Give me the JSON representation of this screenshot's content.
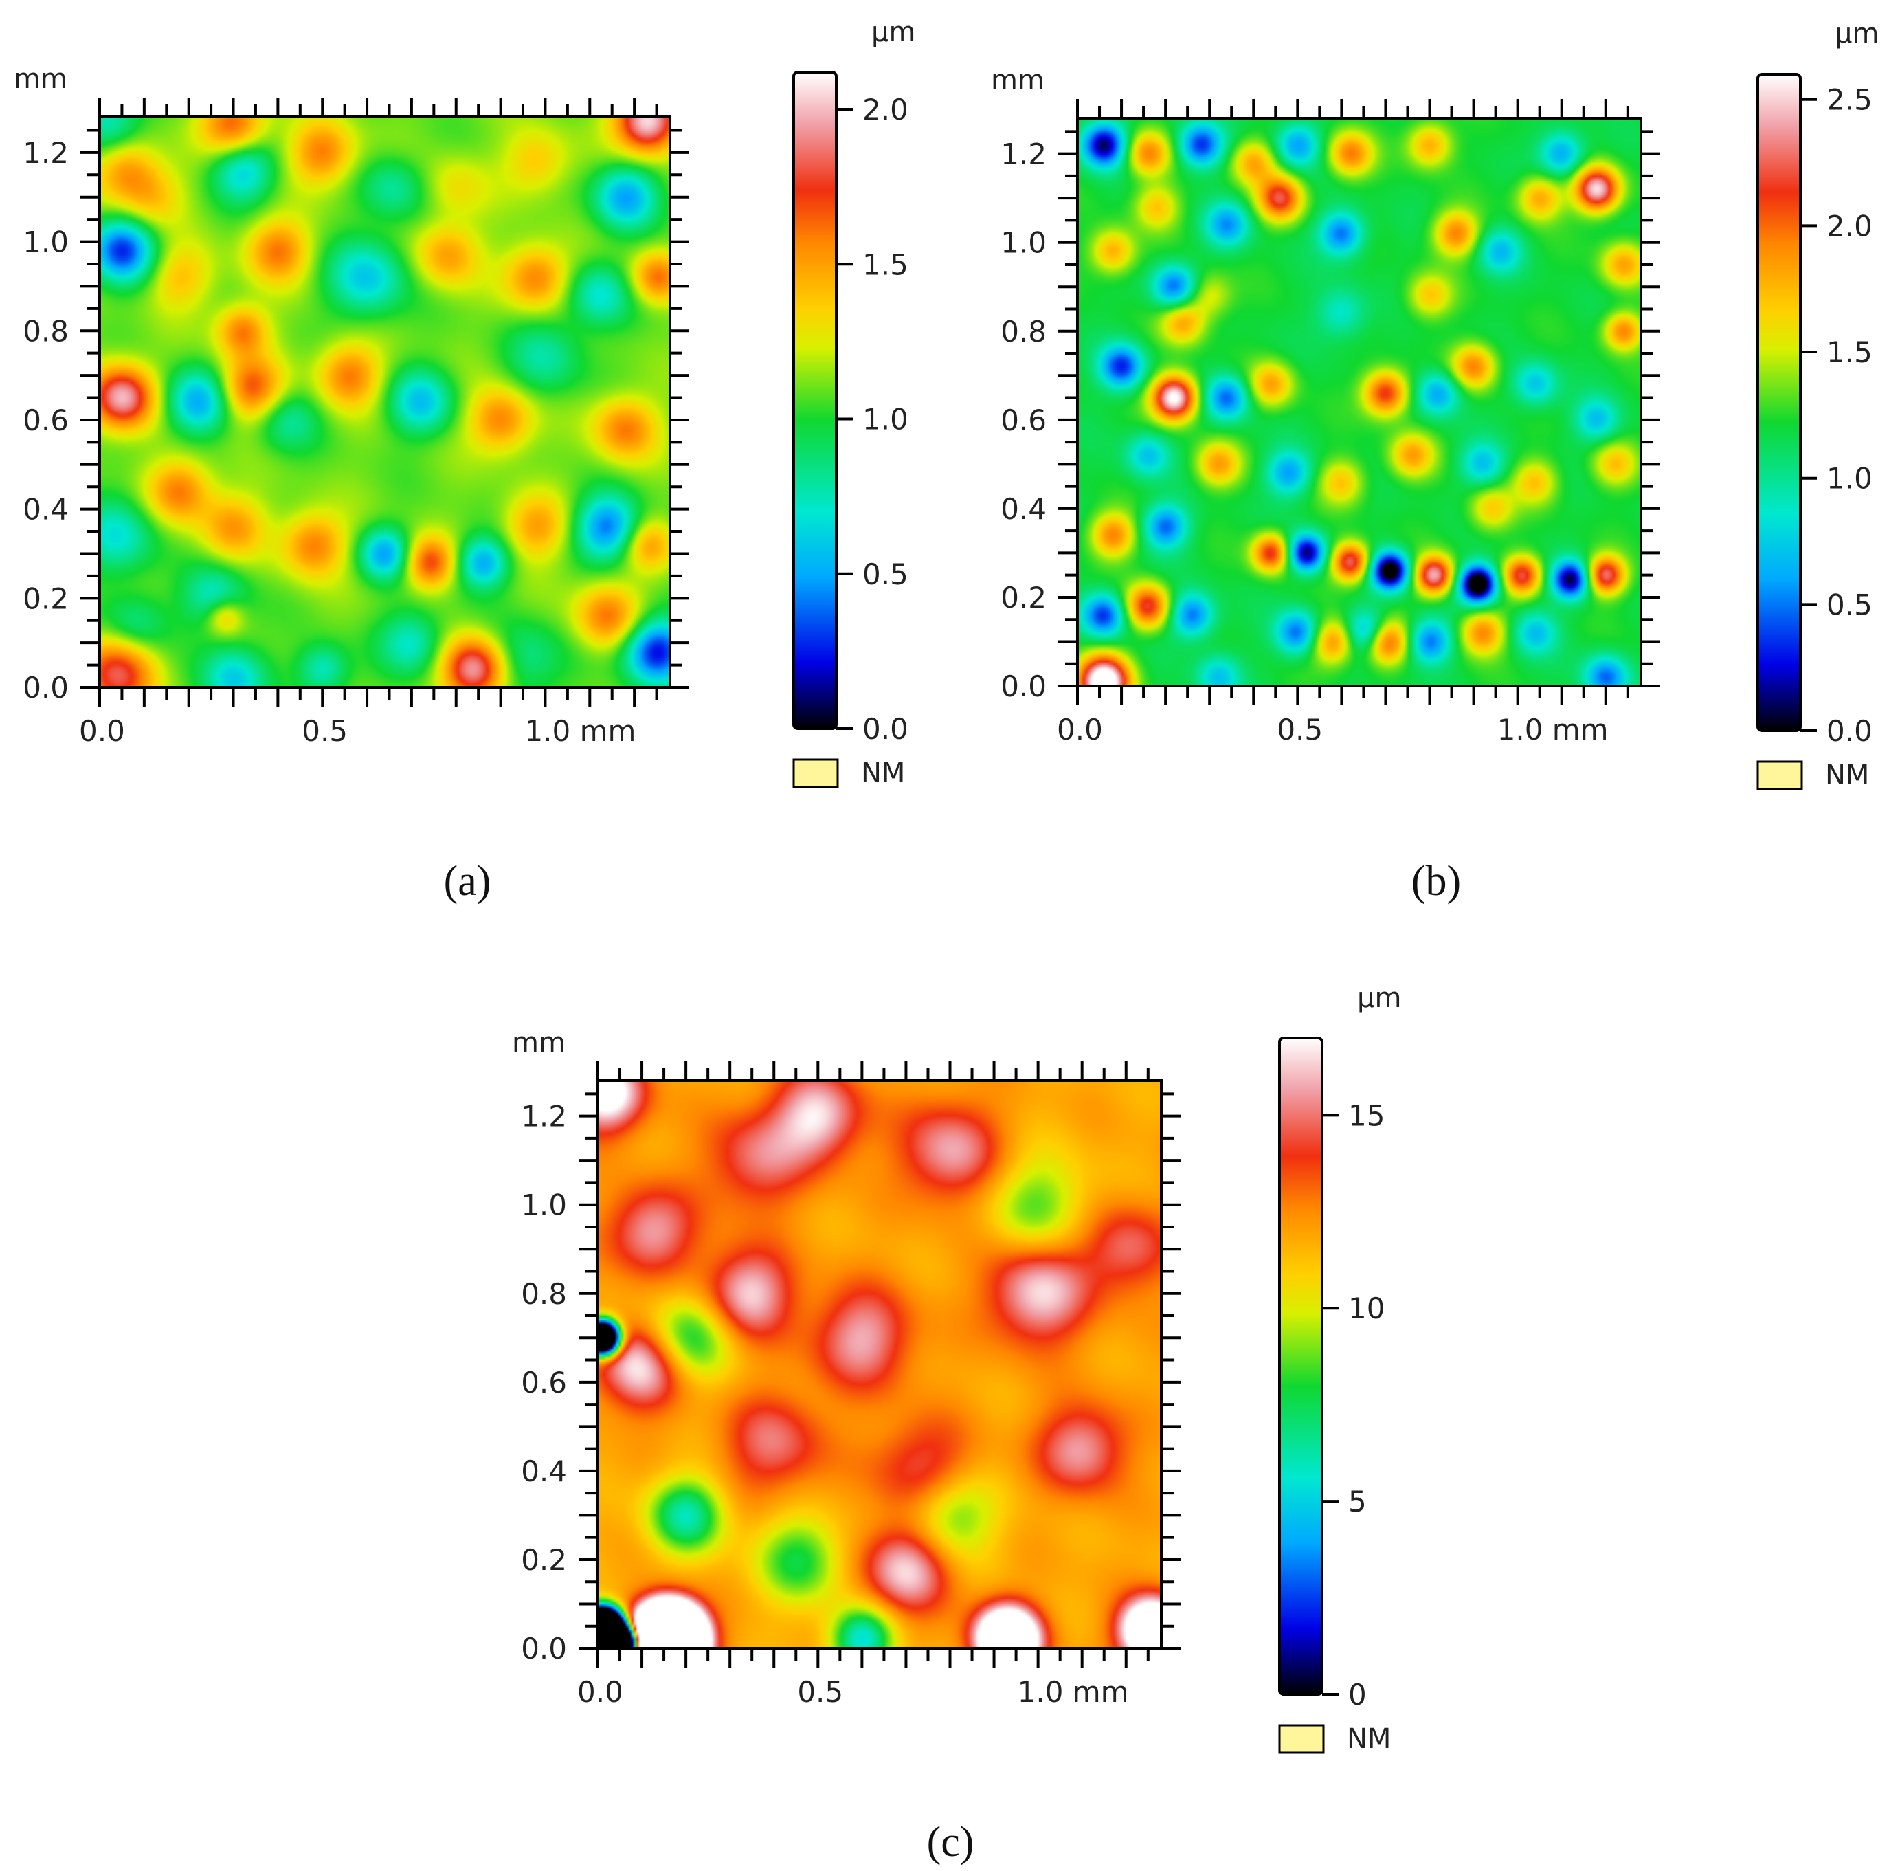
{
  "chart_data": [
    {
      "type": "heatmap",
      "panel_label": "(a)",
      "x_unit": "mm",
      "y_unit": "mm",
      "x_ticks": [
        "0.0",
        "0.5",
        "1.0 mm"
      ],
      "x_tick_values": [
        0.0,
        0.5,
        1.0
      ],
      "y_ticks": [
        "0.0",
        "0.2",
        "0.4",
        "0.6",
        "0.8",
        "1.0",
        "1.2"
      ],
      "y_tick_values": [
        0.0,
        0.2,
        0.4,
        0.6,
        0.8,
        1.0,
        1.2
      ],
      "xlim": [
        0,
        1.28
      ],
      "ylim": [
        0,
        1.28
      ],
      "colorbar": {
        "unit": "µm",
        "ticks": [
          "0.0",
          "0.5",
          "1.0",
          "1.5",
          "2.0"
        ],
        "tick_values": [
          0.0,
          0.5,
          1.0,
          1.5,
          2.0
        ],
        "range": [
          0.0,
          2.12
        ]
      },
      "nm_legend": "NM",
      "base_value": 1.1,
      "features": [
        [
          0.02,
          1.27,
          -0.4,
          0.05
        ],
        [
          0.06,
          1.16,
          0.4,
          0.05
        ],
        [
          0.12,
          1.1,
          0.3,
          0.05
        ],
        [
          0.05,
          0.98,
          -0.8,
          0.05
        ],
        [
          0.18,
          0.92,
          0.3,
          0.05
        ],
        [
          0.32,
          1.16,
          -0.5,
          0.05
        ],
        [
          0.4,
          0.98,
          0.5,
          0.05
        ],
        [
          0.5,
          1.2,
          0.5,
          0.05
        ],
        [
          0.3,
          1.26,
          0.6,
          0.05
        ],
        [
          0.66,
          1.12,
          -0.3,
          0.05
        ],
        [
          0.8,
          1.12,
          0.2,
          0.05
        ],
        [
          0.6,
          0.92,
          -0.5,
          0.06
        ],
        [
          0.78,
          0.97,
          0.4,
          0.05
        ],
        [
          0.98,
          1.18,
          0.3,
          0.05
        ],
        [
          1.18,
          1.1,
          -0.6,
          0.05
        ],
        [
          1.23,
          1.27,
          1.0,
          0.05
        ],
        [
          1.25,
          0.92,
          0.5,
          0.04
        ],
        [
          0.98,
          0.92,
          0.5,
          0.05
        ],
        [
          1.12,
          0.88,
          -0.4,
          0.05
        ],
        [
          0.32,
          0.8,
          0.5,
          0.04
        ],
        [
          0.05,
          0.65,
          0.9,
          0.05
        ],
        [
          0.22,
          0.64,
          -0.6,
          0.05
        ],
        [
          0.34,
          0.67,
          0.6,
          0.05
        ],
        [
          0.42,
          0.6,
          -0.3,
          0.05
        ],
        [
          0.56,
          0.7,
          0.5,
          0.05
        ],
        [
          0.72,
          0.64,
          -0.5,
          0.05
        ],
        [
          0.9,
          0.6,
          0.5,
          0.05
        ],
        [
          1.0,
          0.74,
          -0.3,
          0.06
        ],
        [
          1.18,
          0.58,
          0.5,
          0.05
        ],
        [
          0.04,
          0.34,
          -0.4,
          0.06
        ],
        [
          0.18,
          0.44,
          0.5,
          0.05
        ],
        [
          0.3,
          0.36,
          0.4,
          0.05
        ],
        [
          0.26,
          0.2,
          -0.4,
          0.05
        ],
        [
          0.28,
          0.16,
          0.4,
          0.03
        ],
        [
          0.48,
          0.32,
          0.5,
          0.05
        ],
        [
          0.64,
          0.3,
          -0.6,
          0.04
        ],
        [
          0.74,
          0.28,
          0.6,
          0.04
        ],
        [
          0.86,
          0.28,
          -0.6,
          0.04
        ],
        [
          0.98,
          0.36,
          0.4,
          0.05
        ],
        [
          1.14,
          0.36,
          -0.7,
          0.05
        ],
        [
          1.23,
          0.32,
          0.4,
          0.04
        ],
        [
          1.14,
          0.16,
          0.5,
          0.05
        ],
        [
          1.25,
          0.08,
          -0.9,
          0.05
        ],
        [
          0.84,
          0.04,
          0.9,
          0.05
        ],
        [
          0.7,
          0.1,
          -0.4,
          0.05
        ],
        [
          0.04,
          0.03,
          0.7,
          0.06
        ],
        [
          0.3,
          0.02,
          -0.5,
          0.05
        ],
        [
          0.5,
          0.04,
          -0.4,
          0.04
        ],
        [
          0.95,
          0.06,
          -0.3,
          0.06
        ],
        [
          0.08,
          0.14,
          -0.3,
          0.05
        ]
      ]
    },
    {
      "type": "heatmap",
      "panel_label": "(b)",
      "x_unit": "mm",
      "y_unit": "mm",
      "x_ticks": [
        "0.0",
        "0.5",
        "1.0 mm"
      ],
      "x_tick_values": [
        0.0,
        0.5,
        1.0
      ],
      "y_ticks": [
        "0.0",
        "0.2",
        "0.4",
        "0.6",
        "0.8",
        "1.0",
        "1.2"
      ],
      "y_tick_values": [
        0.0,
        0.2,
        0.4,
        0.6,
        0.8,
        1.0,
        1.2
      ],
      "xlim": [
        0,
        1.28
      ],
      "ylim": [
        0,
        1.28
      ],
      "colorbar": {
        "unit": "µm",
        "ticks": [
          "0.0",
          "0.5",
          "1.0",
          "1.5",
          "2.0",
          "2.5"
        ],
        "tick_values": [
          0.0,
          0.5,
          1.0,
          1.5,
          2.0,
          2.5
        ],
        "range": [
          0.0,
          2.6
        ]
      },
      "nm_legend": "NM",
      "base_value": 1.2,
      "features": [
        [
          0.06,
          1.22,
          -0.9,
          0.035
        ],
        [
          0.16,
          1.2,
          0.6,
          0.035
        ],
        [
          0.28,
          1.22,
          -0.7,
          0.035
        ],
        [
          0.4,
          1.18,
          0.5,
          0.035
        ],
        [
          0.5,
          1.22,
          -0.5,
          0.035
        ],
        [
          0.62,
          1.2,
          0.6,
          0.035
        ],
        [
          0.8,
          1.22,
          0.5,
          0.035
        ],
        [
          1.1,
          1.2,
          -0.5,
          0.035
        ],
        [
          1.18,
          1.12,
          1.1,
          0.035
        ],
        [
          1.05,
          1.1,
          0.5,
          0.035
        ],
        [
          0.46,
          1.1,
          0.8,
          0.035
        ],
        [
          0.6,
          1.02,
          -0.6,
          0.035
        ],
        [
          0.34,
          1.04,
          -0.5,
          0.035
        ],
        [
          0.18,
          1.08,
          0.4,
          0.035
        ],
        [
          0.08,
          0.98,
          0.5,
          0.035
        ],
        [
          0.86,
          1.02,
          0.6,
          0.035
        ],
        [
          0.96,
          0.98,
          -0.4,
          0.035
        ],
        [
          1.24,
          0.95,
          0.5,
          0.035
        ],
        [
          0.22,
          0.9,
          -0.6,
          0.035
        ],
        [
          0.24,
          0.82,
          0.5,
          0.035
        ],
        [
          0.8,
          0.88,
          0.4,
          0.035
        ],
        [
          0.6,
          0.84,
          -0.3,
          0.04
        ],
        [
          0.1,
          0.72,
          -0.7,
          0.035
        ],
        [
          0.22,
          0.65,
          1.2,
          0.035
        ],
        [
          0.34,
          0.65,
          -0.6,
          0.035
        ],
        [
          0.44,
          0.68,
          0.5,
          0.035
        ],
        [
          0.7,
          0.66,
          0.8,
          0.035
        ],
        [
          0.82,
          0.66,
          -0.5,
          0.035
        ],
        [
          0.9,
          0.72,
          0.6,
          0.035
        ],
        [
          1.04,
          0.68,
          -0.4,
          0.035
        ],
        [
          1.18,
          0.6,
          -0.4,
          0.035
        ],
        [
          1.24,
          0.8,
          0.6,
          0.03
        ],
        [
          0.16,
          0.52,
          -0.4,
          0.035
        ],
        [
          0.32,
          0.5,
          0.5,
          0.035
        ],
        [
          0.48,
          0.48,
          -0.5,
          0.035
        ],
        [
          0.6,
          0.46,
          0.4,
          0.035
        ],
        [
          0.76,
          0.52,
          0.5,
          0.035
        ],
        [
          0.92,
          0.5,
          -0.4,
          0.035
        ],
        [
          1.04,
          0.46,
          0.4,
          0.035
        ],
        [
          1.22,
          0.5,
          0.4,
          0.035
        ],
        [
          0.08,
          0.34,
          0.6,
          0.035
        ],
        [
          0.2,
          0.36,
          -0.6,
          0.035
        ],
        [
          0.44,
          0.3,
          0.8,
          0.03
        ],
        [
          0.52,
          0.3,
          -0.9,
          0.03
        ],
        [
          0.62,
          0.28,
          0.9,
          0.03
        ],
        [
          0.71,
          0.26,
          -1.1,
          0.03
        ],
        [
          0.81,
          0.25,
          1.0,
          0.03
        ],
        [
          0.91,
          0.23,
          -1.2,
          0.03
        ],
        [
          1.01,
          0.25,
          0.8,
          0.03
        ],
        [
          1.12,
          0.24,
          -0.9,
          0.03
        ],
        [
          1.2,
          0.25,
          0.9,
          0.03
        ],
        [
          0.06,
          0.16,
          -0.7,
          0.035
        ],
        [
          0.16,
          0.18,
          0.8,
          0.035
        ],
        [
          0.26,
          0.16,
          -0.6,
          0.035
        ],
        [
          0.5,
          0.12,
          -0.6,
          0.035
        ],
        [
          0.58,
          0.1,
          0.6,
          0.035
        ],
        [
          0.66,
          0.12,
          -0.6,
          0.035
        ],
        [
          0.7,
          0.1,
          0.8,
          0.035
        ],
        [
          0.8,
          0.1,
          -0.6,
          0.035
        ],
        [
          0.92,
          0.12,
          0.6,
          0.035
        ],
        [
          1.04,
          0.12,
          -0.4,
          0.035
        ],
        [
          0.06,
          0.01,
          1.4,
          0.04
        ],
        [
          0.32,
          0.02,
          -0.4,
          0.035
        ],
        [
          1.2,
          0.02,
          -0.6,
          0.035
        ],
        [
          0.3,
          0.88,
          0.3,
          0.035
        ],
        [
          0.94,
          0.4,
          0.4,
          0.035
        ]
      ]
    },
    {
      "type": "heatmap",
      "panel_label": "(c)",
      "x_unit": "mm",
      "y_unit": "mm",
      "x_ticks": [
        "0.0",
        "0.5",
        "1.0 mm"
      ],
      "x_tick_values": [
        0.0,
        0.5,
        1.0
      ],
      "y_ticks": [
        "0.0",
        "0.2",
        "0.4",
        "0.6",
        "0.8",
        "1.0",
        "1.2"
      ],
      "y_tick_values": [
        0.0,
        0.2,
        0.4,
        0.6,
        0.8,
        1.0,
        1.2
      ],
      "xlim": [
        0,
        1.28
      ],
      "ylim": [
        0,
        1.28
      ],
      "colorbar": {
        "unit": "µm",
        "ticks": [
          "0",
          "5",
          "10",
          "15"
        ],
        "tick_values": [
          0,
          5,
          10,
          15
        ],
        "range": [
          0,
          17
        ]
      },
      "nm_legend": "NM",
      "base_value": 11.8,
      "features": [
        [
          0.02,
          1.25,
          0.8,
          0.06
        ],
        [
          0.5,
          1.2,
          0.6,
          0.07
        ],
        [
          0.36,
          1.1,
          0.4,
          0.08
        ],
        [
          0.8,
          1.12,
          0.5,
          0.08
        ],
        [
          0.12,
          0.94,
          0.5,
          0.07
        ],
        [
          0.34,
          0.8,
          0.6,
          0.07
        ],
        [
          0.1,
          0.64,
          0.7,
          0.07
        ],
        [
          0.6,
          0.7,
          0.5,
          0.08
        ],
        [
          1.0,
          0.8,
          0.6,
          0.08
        ],
        [
          1.2,
          0.9,
          0.4,
          0.07
        ],
        [
          0.74,
          0.4,
          0.4,
          0.08
        ],
        [
          1.1,
          0.45,
          0.5,
          0.07
        ],
        [
          0.2,
          0.3,
          -0.7,
          0.06
        ],
        [
          0.46,
          0.2,
          -0.5,
          0.07
        ],
        [
          0.8,
          0.3,
          -0.5,
          0.07
        ],
        [
          0.2,
          0.7,
          -0.6,
          0.07
        ],
        [
          0.7,
          0.18,
          0.6,
          0.07
        ],
        [
          0.16,
          0.02,
          4.5,
          0.05
        ],
        [
          0.93,
          0.02,
          1.6,
          0.05
        ],
        [
          1.26,
          0.04,
          1.4,
          0.05
        ],
        [
          0.01,
          0.7,
          -3.5,
          0.025
        ],
        [
          0.01,
          0.04,
          -6.5,
          0.03
        ],
        [
          0.06,
          0.01,
          -3.0,
          0.025
        ],
        [
          0.6,
          0.02,
          -0.8,
          0.05
        ],
        [
          1.0,
          1.0,
          -0.4,
          0.08
        ],
        [
          0.4,
          0.46,
          0.4,
          0.08
        ]
      ]
    }
  ]
}
